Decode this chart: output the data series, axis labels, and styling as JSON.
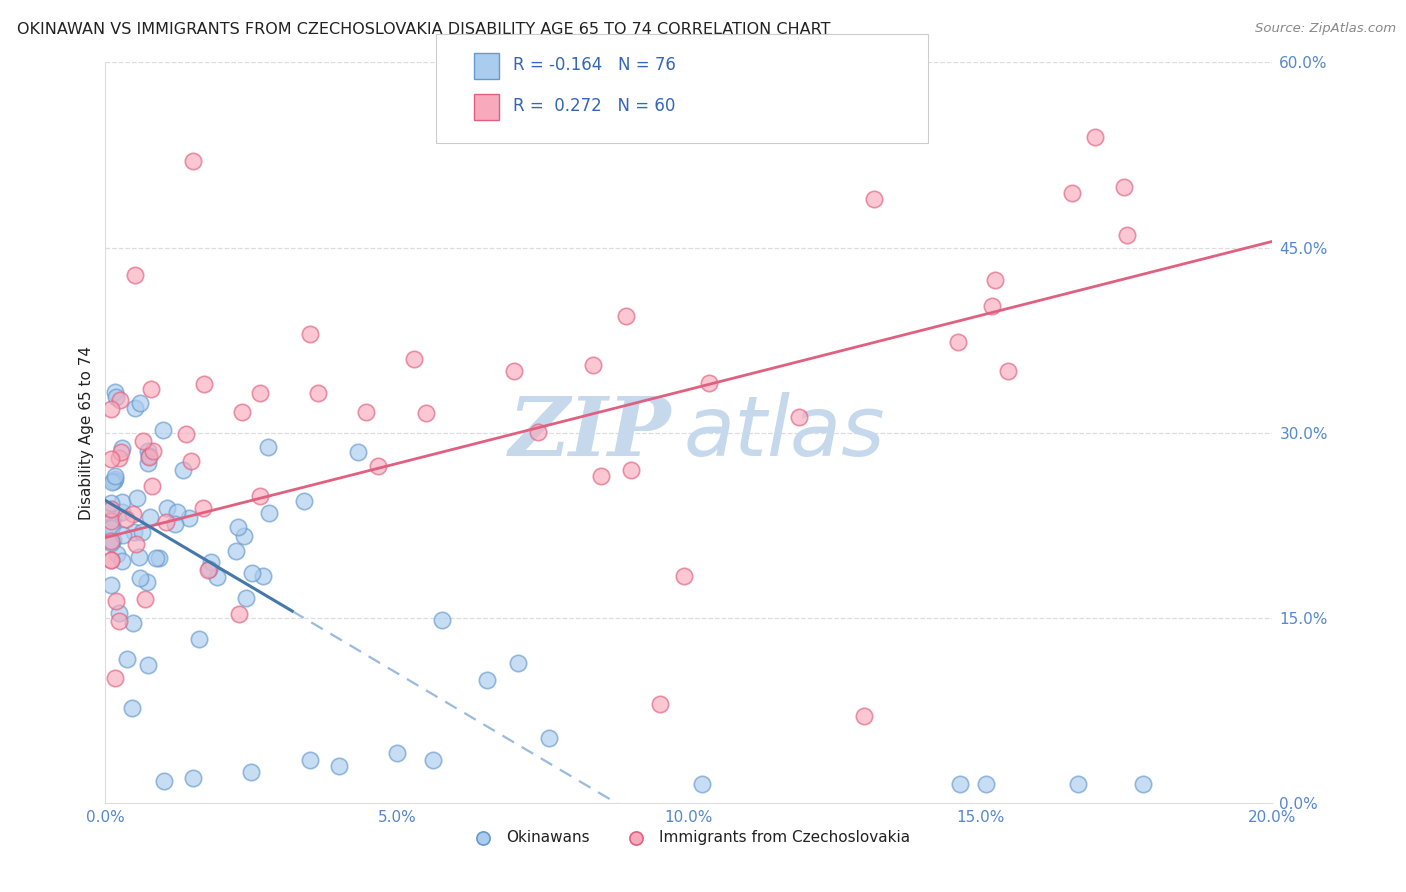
{
  "title": "OKINAWAN VS IMMIGRANTS FROM CZECHOSLOVAKIA DISABILITY AGE 65 TO 74 CORRELATION CHART",
  "source": "Source: ZipAtlas.com",
  "ylabel": "Disability Age 65 to 74",
  "xlim": [
    0.0,
    0.2
  ],
  "ylim": [
    0.0,
    0.6
  ],
  "xtick_vals": [
    0.0,
    0.05,
    0.1,
    0.15,
    0.2
  ],
  "xticklabels": [
    "0.0%",
    "5.0%",
    "10.0%",
    "15.0%",
    "20.0%"
  ],
  "ytick_vals": [
    0.0,
    0.15,
    0.3,
    0.45,
    0.6
  ],
  "yticklabels": [
    "0.0%",
    "15.0%",
    "30.0%",
    "45.0%",
    "60.0%"
  ],
  "r1": "-0.164",
  "n1": "76",
  "r2": "0.272",
  "n2": "60",
  "color_blue_fill": "#AACCEE",
  "color_blue_edge": "#6699CC",
  "color_pink_fill": "#F8AABC",
  "color_pink_edge": "#E06080",
  "color_blue_line_solid": "#4477AA",
  "color_blue_line_dash": "#99BBDD",
  "color_pink_line": "#E06080",
  "axis_tick_color": "#5588CC",
  "watermark_zip_color": "#C5D8EC",
  "watermark_atlas_color": "#C5D8EC",
  "grid_color": "#DDDDDD",
  "title_color": "#222222",
  "source_color": "#888888",
  "legend_text_color": "#3366BB",
  "legend_border_color": "#CCCCCC",
  "background_color": "#FFFFFF",
  "seed_ok": 42,
  "seed_cz": 99,
  "n_ok": 76,
  "n_cz": 60
}
